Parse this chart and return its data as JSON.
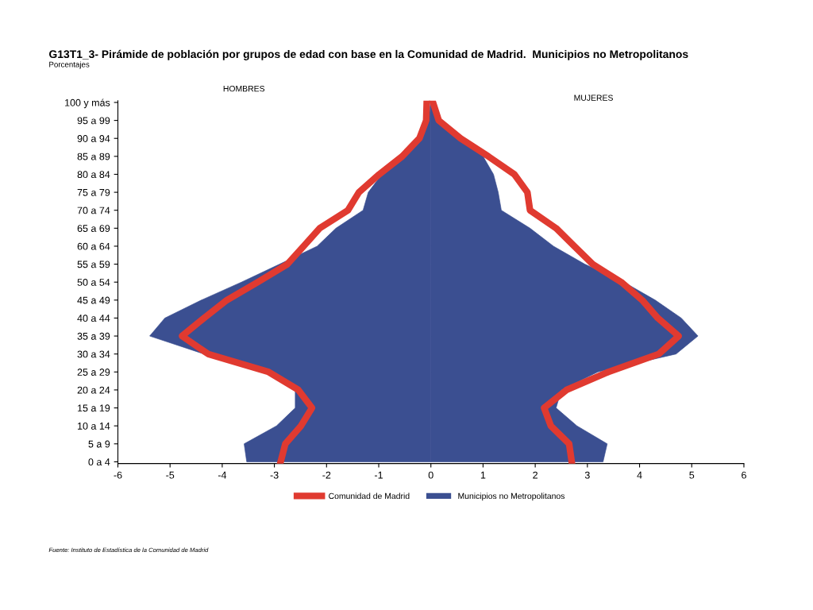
{
  "chart_data": {
    "type": "area",
    "orientation": "horizontal",
    "title": "G13T1_3- Pirámide de población por grupos de edad con base en la Comunidad de Madrid.  Municipios no Metropolitanos",
    "subtitle": "Porcentajes",
    "annotations": [
      "HOMBRES",
      "MUJERES",
      "Fuente: Instituto de Estadística de la Comunidad de Madrid"
    ],
    "categories": [
      "100 y más",
      "95 a 99",
      "90 a 94",
      "85 a 89",
      "80 a 84",
      "75 a 79",
      "70 a 74",
      "65 a 69",
      "60 a 64",
      "55 a 59",
      "50 a 54",
      "45 a 49",
      "40 a 44",
      "35 a 39",
      "30 a 34",
      "25 a 29",
      "20 a 24",
      "15 a 19",
      "10 a 14",
      "5 a 9",
      "0 a 4"
    ],
    "series": [
      {
        "name": "Municipios no Metropolitanos",
        "color": "#3b4f91",
        "values": [
          -0.01,
          -0.04,
          -0.2,
          -0.53,
          -0.94,
          -1.2,
          -1.3,
          -1.82,
          -2.18,
          -2.9,
          -3.63,
          -4.4,
          -5.1,
          -5.39,
          -4.35,
          -3.05,
          -2.6,
          -2.6,
          -2.96,
          -3.58,
          -3.53
        ]
      },
      {
        "color": "#3b4f91",
        "values": [
          0.05,
          0.13,
          0.52,
          1.0,
          1.2,
          1.29,
          1.35,
          1.9,
          2.35,
          2.95,
          3.7,
          4.3,
          4.8,
          5.12,
          4.7,
          3.2,
          2.5,
          2.4,
          2.8,
          3.38,
          3.3
        ]
      },
      {
        "name": "Comunidad de Madrid",
        "type": "line",
        "color": "#e03a30",
        "values": [
          -0.08,
          -0.09,
          -0.22,
          -0.55,
          -0.99,
          -1.38,
          -1.59,
          -2.13,
          -2.44,
          -2.75,
          -3.32,
          -3.91,
          -4.35,
          -4.77,
          -4.27,
          -3.11,
          -2.54,
          -2.28,
          -2.49,
          -2.79,
          -2.88
        ]
      },
      {
        "type": "line",
        "color": "#e03a30",
        "values": [
          0.04,
          0.15,
          0.57,
          1.1,
          1.6,
          1.85,
          1.9,
          2.4,
          2.75,
          3.1,
          3.65,
          4.05,
          4.35,
          4.75,
          4.37,
          3.4,
          2.6,
          2.17,
          2.3,
          2.65,
          2.7
        ]
      }
    ],
    "xlim": [
      -6,
      6
    ],
    "xticks": [
      -6,
      -5,
      -4,
      -3,
      -2,
      -1,
      0,
      1,
      2,
      3,
      4,
      5,
      6
    ],
    "legend": "bottom",
    "grid": false,
    "marker": "none",
    "line_style": "solid"
  }
}
